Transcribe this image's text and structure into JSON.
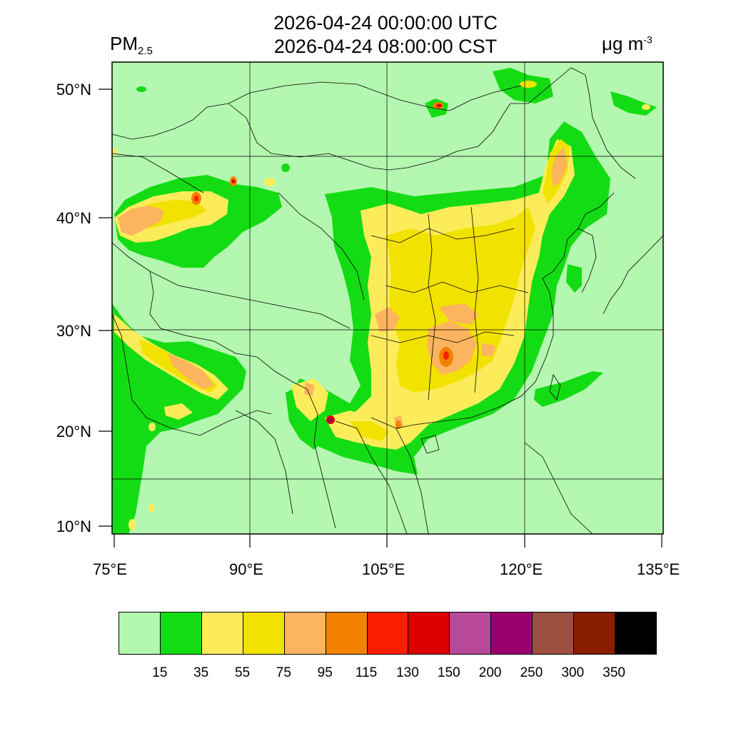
{
  "header": {
    "variable": "PM",
    "variable_sub": "2.5",
    "time_utc": "2026-04-24 00:00:00 UTC",
    "time_local": "2026-04-24 08:00:00 CST",
    "units": "μg m",
    "units_exp": "-3"
  },
  "axes": {
    "y_ticks": [
      "50°N",
      "40°N",
      "30°N",
      "20°N",
      "10°N"
    ],
    "x_ticks": [
      "75°E",
      "90°E",
      "105°E",
      "120°E",
      "135°E"
    ]
  },
  "colorbar": {
    "colors": [
      "#b4f7b0",
      "#14dc14",
      "#fcec5a",
      "#f2e200",
      "#fcb45e",
      "#f28200",
      "#fc1e00",
      "#dc0000",
      "#b8489a",
      "#980070",
      "#9c5040",
      "#8a1e00",
      "#000000"
    ],
    "labels": [
      "15",
      "35",
      "55",
      "75",
      "95",
      "115",
      "130",
      "150",
      "200",
      "250",
      "300",
      "350"
    ]
  }
}
